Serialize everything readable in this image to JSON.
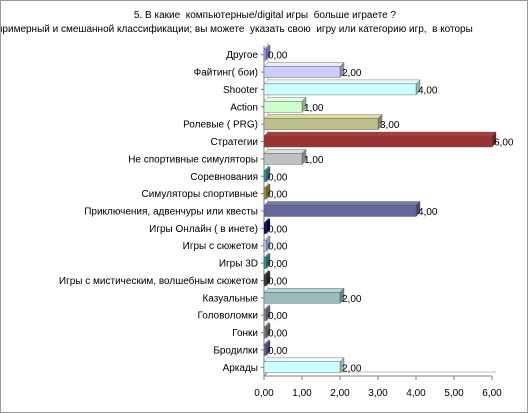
{
  "chart_data": {
    "type": "bar",
    "orientation": "horizontal",
    "title": "5. В какие  компьютерные/digital игры  больше играете ?",
    "subtitle": "примерный и смешанной классификации; вы можете  указать свою  игру или категорию игр,  в которы",
    "categories": [
      "Другое",
      "Файтинг( бои)",
      "Shooter",
      "Action",
      "Ролевые ( PRG)",
      "Стратегии",
      "Не спортивные симуляторы",
      "Соревнования",
      "Симуляторы  спортивные",
      "Приключения, адвенчуры или квесты",
      "Игры Онлайн  ( в инете)",
      "Игры с сюжетом",
      "Игры  3D",
      "Игры  с мистическим, волшебным  сюжетом",
      "Казуальные",
      "Головоломки",
      "Гонки",
      "Бродилки",
      "Аркады"
    ],
    "values": [
      0,
      2,
      4,
      1,
      3,
      6,
      1,
      0,
      0,
      4,
      0,
      0,
      0,
      0,
      2,
      0,
      0,
      0,
      2
    ],
    "data_labels": [
      "0,00",
      "2,00",
      "4,00",
      "1,00",
      "3,00",
      "6,00",
      "1,00",
      "0,00",
      "0,00",
      "4,00",
      "0,00",
      "0,00",
      "0,00",
      "0,00",
      "2,00",
      "0,00",
      "0,00",
      "0,00",
      "2,00"
    ],
    "bar_colors": [
      "#9999ff",
      "#ccccff",
      "#ccffff",
      "#ccffcc",
      "#bfbf8c",
      "#993333",
      "#c0c0c0",
      "#339999",
      "#999933",
      "#666699",
      "#000066",
      "#ccccff",
      "#339999",
      "#333333",
      "#99bbbb",
      "#8080a0",
      "#808080",
      "#666699",
      "#ccffff"
    ],
    "xticks": [
      "0,00",
      "1,00",
      "2,00",
      "3,00",
      "4,00",
      "5,00",
      "6,00"
    ],
    "xlim": [
      0,
      6
    ],
    "grid": false,
    "legend": "none"
  }
}
